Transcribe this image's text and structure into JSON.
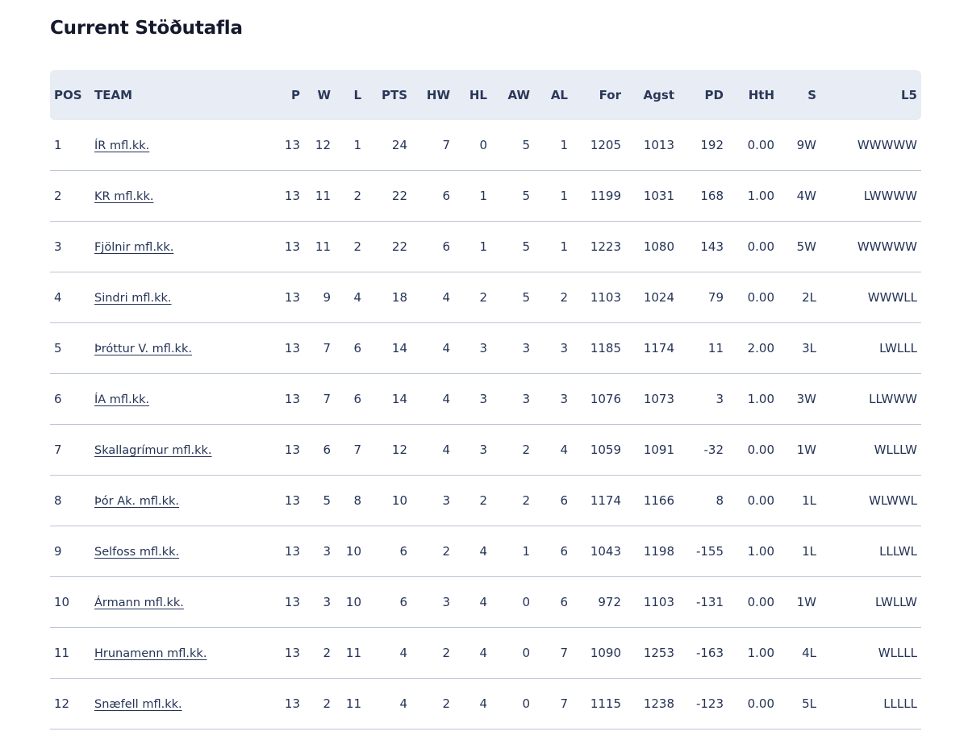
{
  "page": {
    "title": "Current Stöðutafla"
  },
  "table": {
    "headers": [
      "POS",
      "TEAM",
      "P",
      "W",
      "L",
      "PTS",
      "HW",
      "HL",
      "AW",
      "AL",
      "For",
      "Agst",
      "PD",
      "HtH",
      "S",
      "L5"
    ],
    "rows": [
      [
        "1",
        "ÍR mfl.kk.",
        "13",
        "12",
        "1",
        "24",
        "7",
        "0",
        "5",
        "1",
        "1205",
        "1013",
        "192",
        "0.00",
        "9W",
        "WWWWW"
      ],
      [
        "2",
        "KR mfl.kk.",
        "13",
        "11",
        "2",
        "22",
        "6",
        "1",
        "5",
        "1",
        "1199",
        "1031",
        "168",
        "1.00",
        "4W",
        "LWWWW"
      ],
      [
        "3",
        "Fjölnir mfl.kk.",
        "13",
        "11",
        "2",
        "22",
        "6",
        "1",
        "5",
        "1",
        "1223",
        "1080",
        "143",
        "0.00",
        "5W",
        "WWWWW"
      ],
      [
        "4",
        "Sindri mfl.kk.",
        "13",
        "9",
        "4",
        "18",
        "4",
        "2",
        "5",
        "2",
        "1103",
        "1024",
        "79",
        "0.00",
        "2L",
        "WWWLL"
      ],
      [
        "5",
        "Þróttur V. mfl.kk.",
        "13",
        "7",
        "6",
        "14",
        "4",
        "3",
        "3",
        "3",
        "1185",
        "1174",
        "11",
        "2.00",
        "3L",
        "LWLLL"
      ],
      [
        "6",
        "ÍA mfl.kk.",
        "13",
        "7",
        "6",
        "14",
        "4",
        "3",
        "3",
        "3",
        "1076",
        "1073",
        "3",
        "1.00",
        "3W",
        "LLWWW"
      ],
      [
        "7",
        "Skallagrímur mfl.kk.",
        "13",
        "6",
        "7",
        "12",
        "4",
        "3",
        "2",
        "4",
        "1059",
        "1091",
        "-32",
        "0.00",
        "1W",
        "WLLLW"
      ],
      [
        "8",
        "Þór Ak. mfl.kk.",
        "13",
        "5",
        "8",
        "10",
        "3",
        "2",
        "2",
        "6",
        "1174",
        "1166",
        "8",
        "0.00",
        "1L",
        "WLWWL"
      ],
      [
        "9",
        "Selfoss mfl.kk.",
        "13",
        "3",
        "10",
        "6",
        "2",
        "4",
        "1",
        "6",
        "1043",
        "1198",
        "-155",
        "1.00",
        "1L",
        "LLLWL"
      ],
      [
        "10",
        "Ármann mfl.kk.",
        "13",
        "3",
        "10",
        "6",
        "3",
        "4",
        "0",
        "6",
        "972",
        "1103",
        "-131",
        "0.00",
        "1W",
        "LWLLW"
      ],
      [
        "11",
        "Hrunamenn mfl.kk.",
        "13",
        "2",
        "11",
        "4",
        "2",
        "4",
        "0",
        "7",
        "1090",
        "1253",
        "-163",
        "1.00",
        "4L",
        "WLLLL"
      ],
      [
        "12",
        "Snæfell mfl.kk.",
        "13",
        "2",
        "11",
        "4",
        "2",
        "4",
        "0",
        "7",
        "1115",
        "1238",
        "-123",
        "0.00",
        "5L",
        "LLLLL"
      ]
    ]
  },
  "colors": {
    "header_bg": "#e8ecf4",
    "text": "#253357",
    "title": "#14192e",
    "row_border": "#bcc5d6"
  }
}
